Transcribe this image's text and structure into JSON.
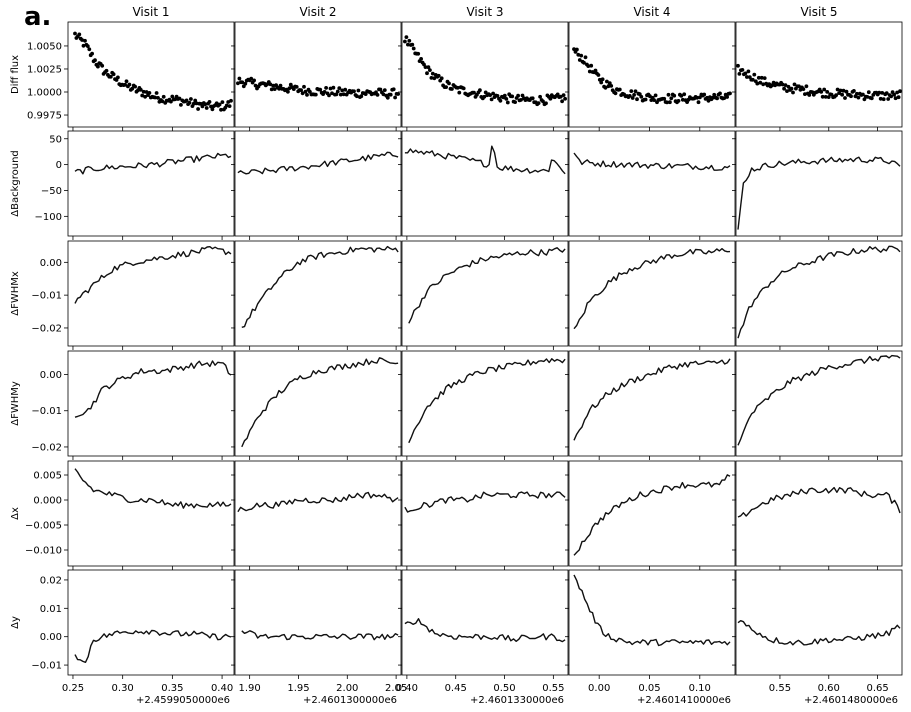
{
  "figure": {
    "panel_label": "a.",
    "background": "#ffffff",
    "line_color": "#000000"
  },
  "chart_data": {
    "type": "line",
    "description_rows": "Six rows share y-axes; first row is a scatter of differential flux, other rows are lines.",
    "visits": [
      {
        "title": "Visit 1",
        "x_offset_label": "+2.4599050000e6",
        "xlim": [
          0.245,
          0.412
        ],
        "xticks": [
          0.25,
          0.3,
          0.35,
          0.4
        ],
        "xticklabels": [
          "0.25",
          "0.30",
          "0.35",
          "0.40"
        ]
      },
      {
        "title": "Visit 2",
        "x_offset_label": "+2.4601300000e6",
        "xlim": [
          1.885,
          2.055
        ],
        "xticks": [
          1.9,
          1.95,
          2.0,
          2.05
        ],
        "xticklabels": [
          "1.90",
          "1.95",
          "2.00",
          "2.05"
        ]
      },
      {
        "title": "Visit 3",
        "x_offset_label": "+2.4601330000e6",
        "xlim": [
          0.395,
          0.565
        ],
        "xticks": [
          0.4,
          0.45,
          0.5,
          0.55
        ],
        "xticklabels": [
          "0.40",
          "0.45",
          "0.50",
          "0.55"
        ]
      },
      {
        "title": "Visit 4",
        "x_offset_label": "+2.4601410000e6",
        "xlim": [
          -0.03,
          0.135
        ],
        "xticks": [
          0.0,
          0.05,
          0.1
        ],
        "xticklabels": [
          "0.00",
          "0.05",
          "0.10"
        ]
      },
      {
        "title": "Visit 5",
        "x_offset_label": "+2.4601480000e6",
        "xlim": [
          0.505,
          0.675
        ],
        "xticks": [
          0.55,
          0.6,
          0.65
        ],
        "xticklabels": [
          "0.55",
          "0.60",
          "0.65"
        ]
      }
    ],
    "rows": [
      {
        "ylabel": "Diff flux",
        "kind": "scatter",
        "ylim": [
          0.9962,
          1.0076
        ],
        "yticks": [
          0.9975,
          1.0,
          1.0025,
          1.005
        ],
        "yticklabels": [
          "0.9975",
          "1.0000",
          "1.0025",
          "1.0050"
        ],
        "series": [
          {
            "visit": 1,
            "x": [
              0.252,
              0.262,
              0.272,
              0.282,
              0.292,
              0.302,
              0.312,
              0.322,
              0.332,
              0.342,
              0.352,
              0.362,
              0.372,
              0.382,
              0.392,
              0.402,
              0.409
            ],
            "y": [
              1.0062,
              1.0052,
              1.0034,
              1.0022,
              1.0015,
              1.0008,
              1.0003,
              0.9999,
              0.9995,
              0.9993,
              0.9992,
              0.999,
              0.9987,
              0.9985,
              0.9984,
              0.9985,
              0.9987
            ]
          },
          {
            "visit": 2,
            "x": [
              1.888,
              1.905,
              1.925,
              1.945,
              1.965,
              1.985,
              2.005,
              2.025,
              2.045,
              2.052
            ],
            "y": [
              1.0012,
              1.0009,
              1.0006,
              1.0003,
              1.0001,
              1.0,
              0.9999,
              0.9999,
              0.9998,
              0.9999
            ]
          },
          {
            "visit": 3,
            "x": [
              0.398,
              0.41,
              0.42,
              0.43,
              0.44,
              0.45,
              0.47,
              0.49,
              0.51,
              0.53,
              0.55,
              0.562
            ],
            "y": [
              1.0058,
              1.004,
              1.0025,
              1.0015,
              1.0008,
              1.0003,
              0.9999,
              0.9995,
              0.9992,
              0.9991,
              0.9992,
              0.9994
            ]
          },
          {
            "visit": 4,
            "x": [
              -0.025,
              -0.015,
              -0.005,
              0.005,
              0.015,
              0.03,
              0.05,
              0.07,
              0.09,
              0.11,
              0.13
            ],
            "y": [
              1.0045,
              1.0035,
              1.002,
              1.001,
              1.0003,
              0.9998,
              0.9994,
              0.9993,
              0.9993,
              0.9994,
              0.9994
            ]
          },
          {
            "visit": 5,
            "x": [
              0.507,
              0.52,
              0.53,
              0.55,
              0.57,
              0.59,
              0.61,
              0.63,
              0.65,
              0.67,
              0.673
            ],
            "y": [
              1.0024,
              1.0018,
              1.0012,
              1.0006,
              1.0003,
              1.0,
              0.9998,
              0.9997,
              0.9996,
              0.9996,
              0.9997
            ]
          }
        ]
      },
      {
        "ylabel": "ΔBackground",
        "kind": "line",
        "ylim": [
          -138,
          65
        ],
        "yticks": [
          -100,
          -50,
          0,
          50
        ],
        "yticklabels": [
          "−100",
          "−50",
          "0",
          "50"
        ],
        "series": [
          {
            "visit": 1,
            "x": [
              0.252,
              0.27,
              0.29,
              0.31,
              0.33,
              0.35,
              0.37,
              0.39,
              0.409
            ],
            "y": [
              -15,
              -8,
              -5,
              -3,
              0,
              5,
              10,
              15,
              18
            ]
          },
          {
            "visit": 2,
            "x": [
              1.888,
              1.92,
              1.95,
              1.98,
              2.01,
              2.04,
              2.052
            ],
            "y": [
              -18,
              -12,
              -6,
              2,
              10,
              18,
              20
            ]
          },
          {
            "visit": 3,
            "x": [
              0.398,
              0.43,
              0.46,
              0.485,
              0.488,
              0.492,
              0.52,
              0.545,
              0.548,
              0.562
            ],
            "y": [
              28,
              20,
              10,
              0,
              55,
              -5,
              -10,
              -12,
              12,
              -15
            ]
          },
          {
            "visit": 4,
            "x": [
              -0.025,
              -0.02,
              0.0,
              0.03,
              0.06,
              0.09,
              0.12,
              0.13
            ],
            "y": [
              25,
              5,
              2,
              0,
              -2,
              -3,
              -5,
              -5
            ]
          },
          {
            "visit": 5,
            "x": [
              0.507,
              0.512,
              0.52,
              0.54,
              0.57,
              0.6,
              0.63,
              0.66,
              0.673
            ],
            "y": [
              -130,
              -40,
              -10,
              0,
              5,
              8,
              10,
              8,
              -5
            ]
          }
        ]
      },
      {
        "ylabel": "ΔFWHMx",
        "kind": "line",
        "ylim": [
          -0.0255,
          0.0065
        ],
        "yticks": [
          -0.02,
          -0.01,
          0.0
        ],
        "yticklabels": [
          "−0.02",
          "−0.01",
          "0.00"
        ],
        "series": [
          {
            "visit": 1,
            "x": [
              0.252,
              0.27,
              0.29,
              0.31,
              0.33,
              0.35,
              0.37,
              0.39,
              0.409
            ],
            "y": [
              -0.012,
              -0.007,
              -0.002,
              0.0,
              0.001,
              0.002,
              0.003,
              0.004,
              0.003
            ]
          },
          {
            "visit": 2,
            "x": [
              1.892,
              1.91,
              1.93,
              1.95,
              1.97,
              1.99,
              2.01,
              2.03,
              2.052
            ],
            "y": [
              -0.02,
              -0.012,
              -0.005,
              0.0,
              0.002,
              0.003,
              0.004,
              0.004,
              0.004
            ]
          },
          {
            "visit": 3,
            "x": [
              0.402,
              0.42,
              0.44,
              0.46,
              0.48,
              0.5,
              0.52,
              0.54,
              0.562
            ],
            "y": [
              -0.018,
              -0.009,
              -0.004,
              -0.001,
              0.001,
              0.002,
              0.003,
              0.003,
              0.004
            ]
          },
          {
            "visit": 4,
            "x": [
              -0.025,
              -0.01,
              0.01,
              0.03,
              0.05,
              0.07,
              0.09,
              0.11,
              0.13
            ],
            "y": [
              -0.021,
              -0.012,
              -0.006,
              -0.002,
              0.0,
              0.002,
              0.003,
              0.003,
              0.004
            ]
          },
          {
            "visit": 5,
            "x": [
              0.507,
              0.52,
              0.54,
              0.56,
              0.58,
              0.6,
              0.62,
              0.64,
              0.66,
              0.673
            ],
            "y": [
              -0.023,
              -0.013,
              -0.006,
              -0.002,
              0.0,
              0.002,
              0.003,
              0.004,
              0.004,
              0.004
            ]
          }
        ]
      },
      {
        "ylabel": "ΔFWHMy",
        "kind": "line",
        "ylim": [
          -0.0225,
          0.0065
        ],
        "yticks": [
          -0.02,
          -0.01,
          0.0
        ],
        "yticklabels": [
          "−0.02",
          "−0.01",
          "0.00"
        ],
        "series": [
          {
            "visit": 1,
            "x": [
              0.252,
              0.265,
              0.28,
              0.3,
              0.32,
              0.34,
              0.36,
              0.38,
              0.4,
              0.409
            ],
            "y": [
              -0.011,
              -0.01,
              -0.004,
              -0.001,
              0.001,
              0.001,
              0.002,
              0.003,
              0.003,
              0.0
            ]
          },
          {
            "visit": 2,
            "x": [
              1.892,
              1.91,
              1.93,
              1.95,
              1.97,
              1.99,
              2.01,
              2.03,
              2.052
            ],
            "y": [
              -0.02,
              -0.011,
              -0.005,
              -0.001,
              0.001,
              0.002,
              0.003,
              0.004,
              0.003
            ]
          },
          {
            "visit": 3,
            "x": [
              0.402,
              0.42,
              0.44,
              0.46,
              0.48,
              0.5,
              0.52,
              0.54,
              0.562
            ],
            "y": [
              -0.018,
              -0.009,
              -0.004,
              -0.001,
              0.001,
              0.002,
              0.003,
              0.004,
              0.004
            ]
          },
          {
            "visit": 4,
            "x": [
              -0.025,
              -0.01,
              0.01,
              0.03,
              0.05,
              0.07,
              0.09,
              0.11,
              0.13
            ],
            "y": [
              -0.018,
              -0.01,
              -0.005,
              -0.002,
              0.0,
              0.002,
              0.003,
              0.003,
              0.004
            ]
          },
          {
            "visit": 5,
            "x": [
              0.507,
              0.52,
              0.54,
              0.56,
              0.58,
              0.6,
              0.62,
              0.64,
              0.66,
              0.673
            ],
            "y": [
              -0.02,
              -0.011,
              -0.006,
              -0.002,
              0.0,
              0.002,
              0.003,
              0.004,
              0.005,
              0.004
            ]
          }
        ]
      },
      {
        "ylabel": "Δx",
        "kind": "line",
        "ylim": [
          -0.0132,
          0.0078
        ],
        "yticks": [
          -0.01,
          -0.005,
          0.0,
          0.005
        ],
        "yticklabels": [
          "−0.010",
          "−0.005",
          "0.000",
          "0.005"
        ],
        "series": [
          {
            "visit": 1,
            "x": [
              0.252,
              0.26,
              0.27,
              0.29,
              0.31,
              0.33,
              0.35,
              0.37,
              0.39,
              0.409
            ],
            "y": [
              0.006,
              0.004,
              0.002,
              0.001,
              0.0,
              0.0,
              -0.001,
              -0.001,
              -0.001,
              -0.001
            ]
          },
          {
            "visit": 2,
            "x": [
              1.888,
              1.91,
              1.93,
              1.95,
              1.97,
              1.99,
              2.01,
              2.03,
              2.052
            ],
            "y": [
              -0.002,
              -0.001,
              -0.001,
              0.0,
              0.0,
              0.0,
              0.001,
              0.001,
              0.0
            ]
          },
          {
            "visit": 3,
            "x": [
              0.398,
              0.42,
              0.44,
              0.46,
              0.48,
              0.5,
              0.52,
              0.54,
              0.562
            ],
            "y": [
              -0.002,
              -0.001,
              0.0,
              0.0,
              0.001,
              0.001,
              0.001,
              0.001,
              0.001
            ]
          },
          {
            "visit": 4,
            "x": [
              -0.025,
              -0.015,
              0.0,
              0.02,
              0.04,
              0.06,
              0.08,
              0.1,
              0.12,
              0.13
            ],
            "y": [
              -0.011,
              -0.008,
              -0.004,
              -0.001,
              0.001,
              0.002,
              0.003,
              0.003,
              0.003,
              0.005
            ]
          },
          {
            "visit": 5,
            "x": [
              0.507,
              0.52,
              0.54,
              0.56,
              0.58,
              0.6,
              0.62,
              0.64,
              0.66,
              0.673
            ],
            "y": [
              -0.004,
              -0.002,
              0.0,
              0.001,
              0.002,
              0.002,
              0.002,
              0.001,
              0.001,
              -0.002
            ]
          }
        ]
      },
      {
        "ylabel": "Δy",
        "kind": "line",
        "ylim": [
          -0.0135,
          0.0235
        ],
        "yticks": [
          -0.01,
          0.0,
          0.01,
          0.02
        ],
        "yticklabels": [
          "−0.01",
          "0.00",
          "0.01",
          "0.02"
        ],
        "series": [
          {
            "visit": 1,
            "x": [
              0.252,
              0.262,
              0.27,
              0.29,
              0.31,
              0.33,
              0.35,
              0.37,
              0.39,
              0.409
            ],
            "y": [
              -0.006,
              -0.01,
              -0.001,
              0.001,
              0.002,
              0.002,
              0.001,
              0.001,
              0.0,
              0.0
            ]
          },
          {
            "visit": 2,
            "x": [
              1.892,
              1.91,
              1.93,
              1.95,
              1.97,
              1.99,
              2.01,
              2.03,
              2.052
            ],
            "y": [
              0.002,
              0.0,
              0.0,
              0.0,
              0.0,
              0.0,
              0.0,
              0.0,
              0.0
            ]
          },
          {
            "visit": 3,
            "x": [
              0.398,
              0.41,
              0.43,
              0.45,
              0.47,
              0.49,
              0.51,
              0.53,
              0.55,
              0.562
            ],
            "y": [
              0.004,
              0.006,
              0.001,
              0.0,
              0.0,
              0.0,
              -0.001,
              0.0,
              0.0,
              -0.001
            ]
          },
          {
            "visit": 4,
            "x": [
              -0.025,
              -0.02,
              -0.01,
              0.0,
              0.01,
              0.03,
              0.05,
              0.07,
              0.09,
              0.11,
              0.13
            ],
            "y": [
              0.021,
              0.018,
              0.01,
              0.003,
              0.0,
              -0.002,
              -0.002,
              -0.002,
              -0.002,
              -0.002,
              -0.002
            ]
          },
          {
            "visit": 5,
            "x": [
              0.507,
              0.52,
              0.54,
              0.56,
              0.58,
              0.6,
              0.62,
              0.64,
              0.66,
              0.673
            ],
            "y": [
              0.006,
              0.003,
              -0.001,
              -0.002,
              -0.002,
              -0.001,
              -0.001,
              0.0,
              0.001,
              0.004
            ]
          }
        ]
      }
    ]
  }
}
